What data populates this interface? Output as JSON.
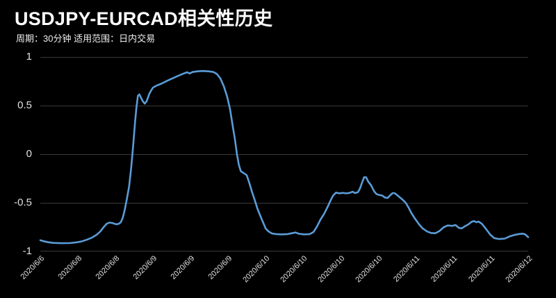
{
  "header": {
    "title": "USDJPY-EURCAD相关性历史",
    "subtitle": "周期：30分钟 适用范围：日内交易"
  },
  "colors": {
    "background": "#000000",
    "line": "#5b9cd8",
    "grid": "#3a3a3a",
    "title_text": "#ffffff",
    "axis_text": "#e0e0e0"
  },
  "chart_data": {
    "type": "line",
    "title": "USDJPY-EURCAD相关性历史",
    "subtitle": "周期：30分钟 适用范围：日内交易",
    "xlabel": "",
    "ylabel": "",
    "ylim": [
      -1,
      1
    ],
    "y_ticks": [
      "1",
      "0.5",
      "0",
      "-0.5",
      "-1"
    ],
    "y_tick_values": [
      1,
      0.5,
      0,
      -0.5,
      -1
    ],
    "x_tick_labels": [
      "2020/6/6",
      "2020/6/8",
      "2020/6/8",
      "2020/6/9",
      "2020/6/9",
      "2020/6/9",
      "2020/6/10",
      "2020/6/10",
      "2020/6/10",
      "2020/6/10",
      "2020/6/11",
      "2020/6/11",
      "2020/6/11",
      "2020/6/12"
    ],
    "grid": "horizontal-only",
    "legend": "none",
    "series_name": "USDJPY-EURCAD correlation",
    "points": [
      [
        0.0,
        -0.885
      ],
      [
        0.007,
        -0.895
      ],
      [
        0.016,
        -0.905
      ],
      [
        0.027,
        -0.912
      ],
      [
        0.043,
        -0.915
      ],
      [
        0.06,
        -0.914
      ],
      [
        0.072,
        -0.908
      ],
      [
        0.084,
        -0.898
      ],
      [
        0.095,
        -0.88
      ],
      [
        0.105,
        -0.86
      ],
      [
        0.115,
        -0.83
      ],
      [
        0.123,
        -0.795
      ],
      [
        0.13,
        -0.748
      ],
      [
        0.136,
        -0.715
      ],
      [
        0.142,
        -0.703
      ],
      [
        0.148,
        -0.708
      ],
      [
        0.155,
        -0.72
      ],
      [
        0.16,
        -0.717
      ],
      [
        0.165,
        -0.7
      ],
      [
        0.169,
        -0.655
      ],
      [
        0.173,
        -0.575
      ],
      [
        0.177,
        -0.47
      ],
      [
        0.182,
        -0.33
      ],
      [
        0.186,
        -0.15
      ],
      [
        0.19,
        0.07
      ],
      [
        0.194,
        0.32
      ],
      [
        0.197,
        0.48
      ],
      [
        0.2,
        0.6
      ],
      [
        0.203,
        0.615
      ],
      [
        0.206,
        0.585
      ],
      [
        0.21,
        0.545
      ],
      [
        0.214,
        0.52
      ],
      [
        0.218,
        0.545
      ],
      [
        0.223,
        0.615
      ],
      [
        0.227,
        0.655
      ],
      [
        0.231,
        0.685
      ],
      [
        0.238,
        0.705
      ],
      [
        0.248,
        0.725
      ],
      [
        0.26,
        0.755
      ],
      [
        0.271,
        0.78
      ],
      [
        0.282,
        0.805
      ],
      [
        0.294,
        0.83
      ],
      [
        0.301,
        0.843
      ],
      [
        0.306,
        0.83
      ],
      [
        0.312,
        0.845
      ],
      [
        0.322,
        0.852
      ],
      [
        0.333,
        0.856
      ],
      [
        0.345,
        0.852
      ],
      [
        0.355,
        0.845
      ],
      [
        0.362,
        0.825
      ],
      [
        0.369,
        0.78
      ],
      [
        0.376,
        0.7
      ],
      [
        0.383,
        0.59
      ],
      [
        0.389,
        0.46
      ],
      [
        0.394,
        0.3
      ],
      [
        0.399,
        0.15
      ],
      [
        0.403,
        0.0
      ],
      [
        0.407,
        -0.11
      ],
      [
        0.411,
        -0.175
      ],
      [
        0.417,
        -0.195
      ],
      [
        0.423,
        -0.215
      ],
      [
        0.428,
        -0.29
      ],
      [
        0.434,
        -0.39
      ],
      [
        0.44,
        -0.48
      ],
      [
        0.445,
        -0.56
      ],
      [
        0.451,
        -0.635
      ],
      [
        0.457,
        -0.705
      ],
      [
        0.462,
        -0.765
      ],
      [
        0.468,
        -0.795
      ],
      [
        0.475,
        -0.815
      ],
      [
        0.484,
        -0.822
      ],
      [
        0.495,
        -0.824
      ],
      [
        0.506,
        -0.822
      ],
      [
        0.516,
        -0.812
      ],
      [
        0.523,
        -0.805
      ],
      [
        0.53,
        -0.818
      ],
      [
        0.54,
        -0.824
      ],
      [
        0.552,
        -0.822
      ],
      [
        0.56,
        -0.8
      ],
      [
        0.567,
        -0.745
      ],
      [
        0.574,
        -0.675
      ],
      [
        0.582,
        -0.61
      ],
      [
        0.589,
        -0.54
      ],
      [
        0.594,
        -0.485
      ],
      [
        0.6,
        -0.426
      ],
      [
        0.606,
        -0.395
      ],
      [
        0.613,
        -0.402
      ],
      [
        0.62,
        -0.398
      ],
      [
        0.627,
        -0.403
      ],
      [
        0.634,
        -0.398
      ],
      [
        0.64,
        -0.385
      ],
      [
        0.645,
        -0.4
      ],
      [
        0.651,
        -0.39
      ],
      [
        0.655,
        -0.355
      ],
      [
        0.66,
        -0.285
      ],
      [
        0.664,
        -0.235
      ],
      [
        0.668,
        -0.238
      ],
      [
        0.672,
        -0.28
      ],
      [
        0.678,
        -0.32
      ],
      [
        0.684,
        -0.38
      ],
      [
        0.689,
        -0.41
      ],
      [
        0.695,
        -0.42
      ],
      [
        0.701,
        -0.425
      ],
      [
        0.706,
        -0.445
      ],
      [
        0.712,
        -0.45
      ],
      [
        0.716,
        -0.428
      ],
      [
        0.722,
        -0.4
      ],
      [
        0.726,
        -0.4
      ],
      [
        0.73,
        -0.415
      ],
      [
        0.736,
        -0.44
      ],
      [
        0.742,
        -0.465
      ],
      [
        0.749,
        -0.5
      ],
      [
        0.755,
        -0.55
      ],
      [
        0.76,
        -0.6
      ],
      [
        0.767,
        -0.655
      ],
      [
        0.776,
        -0.72
      ],
      [
        0.784,
        -0.765
      ],
      [
        0.793,
        -0.795
      ],
      [
        0.801,
        -0.81
      ],
      [
        0.81,
        -0.812
      ],
      [
        0.818,
        -0.79
      ],
      [
        0.827,
        -0.75
      ],
      [
        0.835,
        -0.733
      ],
      [
        0.844,
        -0.737
      ],
      [
        0.851,
        -0.728
      ],
      [
        0.858,
        -0.758
      ],
      [
        0.864,
        -0.762
      ],
      [
        0.869,
        -0.745
      ],
      [
        0.877,
        -0.722
      ],
      [
        0.884,
        -0.695
      ],
      [
        0.889,
        -0.688
      ],
      [
        0.894,
        -0.7
      ],
      [
        0.898,
        -0.692
      ],
      [
        0.905,
        -0.715
      ],
      [
        0.913,
        -0.765
      ],
      [
        0.922,
        -0.825
      ],
      [
        0.93,
        -0.862
      ],
      [
        0.94,
        -0.872
      ],
      [
        0.952,
        -0.868
      ],
      [
        0.962,
        -0.845
      ],
      [
        0.972,
        -0.83
      ],
      [
        0.982,
        -0.82
      ],
      [
        0.989,
        -0.817
      ],
      [
        0.994,
        -0.825
      ],
      [
        1.0,
        -0.853
      ]
    ]
  }
}
